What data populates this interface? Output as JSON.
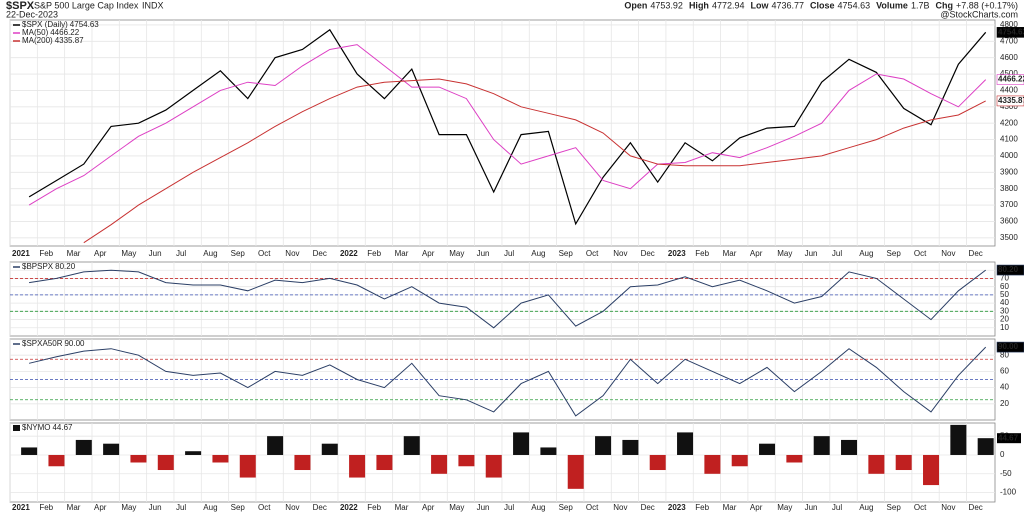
{
  "header": {
    "symbol": "$SPX",
    "name": "S&P 500 Large Cap Index",
    "exchange": "INDX",
    "date": "22-Dec-2023",
    "watermark": "@StockCharts.com",
    "quote": [
      {
        "label": "Open",
        "value": "4753.92"
      },
      {
        "label": "High",
        "value": "4772.94"
      },
      {
        "label": "Low",
        "value": "4736.77"
      },
      {
        "label": "Close",
        "value": "4754.63"
      },
      {
        "label": "Volume",
        "value": "1.7B"
      },
      {
        "label": "Chg",
        "value": "+7.88 (+0.17%)"
      }
    ]
  },
  "chart_data": [
    {
      "type": "line",
      "categories": [
        "2021",
        "Feb",
        "Mar",
        "Apr",
        "May",
        "Jun",
        "Jul",
        "Aug",
        "Sep",
        "Oct",
        "Nov",
        "Dec",
        "2022",
        "Feb",
        "Mar",
        "Apr",
        "May",
        "Jun",
        "Jul",
        "Aug",
        "Sep",
        "Oct",
        "Nov",
        "Dec",
        "2023",
        "Feb",
        "Mar",
        "Apr",
        "May",
        "Jun",
        "Jul",
        "Aug",
        "Sep",
        "Oct",
        "Nov",
        "Dec"
      ],
      "ylim": [
        3450,
        4830
      ],
      "yticks": [
        3500,
        3600,
        3700,
        3800,
        3900,
        4000,
        4100,
        4200,
        4300,
        4400,
        4500,
        4600,
        4700,
        4800
      ],
      "grid": true,
      "series": [
        {
          "name": "$SPX (Daily)",
          "color": "#000000",
          "values": [
            3750,
            3850,
            3950,
            4180,
            4200,
            4280,
            4400,
            4520,
            4350,
            4600,
            4650,
            4770,
            4500,
            4350,
            4530,
            4130,
            4130,
            3780,
            4130,
            4150,
            3585,
            3870,
            4080,
            3840,
            4080,
            3970,
            4110,
            4170,
            4180,
            4450,
            4590,
            4510,
            4290,
            4190,
            4560,
            4754.63
          ]
        },
        {
          "name": "MA(50)",
          "color": "#dd3fc4",
          "values": [
            3700,
            3800,
            3880,
            4000,
            4120,
            4200,
            4300,
            4400,
            4450,
            4430,
            4550,
            4650,
            4680,
            4550,
            4420,
            4420,
            4350,
            4100,
            3950,
            4000,
            4050,
            3850,
            3800,
            3950,
            3960,
            4020,
            3990,
            4050,
            4120,
            4200,
            4400,
            4500,
            4470,
            4380,
            4300,
            4466.22
          ]
        },
        {
          "name": "MA(200)",
          "color": "#c83232",
          "values": [
            null,
            null,
            3470,
            3580,
            3700,
            3800,
            3900,
            3990,
            4080,
            4180,
            4270,
            4350,
            4420,
            4450,
            4460,
            4470,
            4440,
            4380,
            4300,
            4260,
            4220,
            4140,
            4000,
            3950,
            3940,
            3940,
            3940,
            3960,
            3980,
            4000,
            4050,
            4100,
            4170,
            4220,
            4250,
            4335.87
          ]
        }
      ]
    },
    {
      "type": "line",
      "ylim": [
        0,
        90
      ],
      "yticks": [
        10,
        20,
        30,
        40,
        50,
        60,
        70,
        80
      ],
      "grid": true,
      "ref_lines": [
        {
          "value": 70,
          "color": "#c83232"
        },
        {
          "value": 50,
          "color": "#3a4fb0"
        },
        {
          "value": 30,
          "color": "#2a9a3a"
        }
      ],
      "series": [
        {
          "name": "$BPSPX",
          "color": "#2b3f66",
          "values": [
            65,
            70,
            78,
            80,
            78,
            65,
            62,
            62,
            55,
            68,
            65,
            70,
            62,
            45,
            60,
            40,
            35,
            10,
            40,
            50,
            12,
            30,
            60,
            62,
            72,
            60,
            68,
            55,
            40,
            48,
            78,
            70,
            45,
            20,
            55,
            80.2
          ],
          "value_labels": [
            null,
            null,
            null,
            null,
            null,
            null,
            null,
            null,
            null,
            null,
            null,
            null,
            null,
            null,
            null,
            null,
            null,
            null,
            null,
            null,
            null,
            null,
            null,
            null,
            null,
            null,
            null,
            null,
            null,
            null,
            null,
            null,
            null,
            null,
            null,
            "80.20"
          ]
        }
      ]
    },
    {
      "type": "line",
      "ylim": [
        0,
        100
      ],
      "yticks": [
        20,
        40,
        60,
        80
      ],
      "grid": true,
      "ref_lines": [
        {
          "value": 75,
          "color": "#c83232"
        },
        {
          "value": 50,
          "color": "#3a4fb0"
        },
        {
          "value": 25,
          "color": "#2a9a3a"
        }
      ],
      "series": [
        {
          "name": "$SPXA50R",
          "color": "#2b3f66",
          "values": [
            70,
            78,
            85,
            88,
            80,
            60,
            55,
            58,
            40,
            60,
            55,
            68,
            50,
            40,
            70,
            30,
            25,
            10,
            45,
            60,
            5,
            30,
            75,
            45,
            75,
            60,
            45,
            65,
            35,
            60,
            88,
            65,
            35,
            10,
            55,
            90
          ],
          "value_labels": [
            null,
            null,
            null,
            null,
            null,
            null,
            null,
            null,
            null,
            null,
            null,
            null,
            null,
            null,
            null,
            null,
            null,
            null,
            null,
            null,
            null,
            null,
            null,
            null,
            null,
            null,
            null,
            null,
            null,
            null,
            null,
            null,
            null,
            null,
            null,
            "90.00"
          ]
        }
      ]
    },
    {
      "type": "bar",
      "ylim": [
        -125,
        85
      ],
      "yticks": [
        -100,
        -50,
        0,
        50
      ],
      "grid": true,
      "categories": [
        "2021",
        "Feb",
        "Mar",
        "Apr",
        "May",
        "Jun",
        "Jul",
        "Aug",
        "Sep",
        "Oct",
        "Nov",
        "Dec",
        "2022",
        "Feb",
        "Mar",
        "Apr",
        "May",
        "Jun",
        "Jul",
        "Aug",
        "Sep",
        "Oct",
        "Nov",
        "Dec",
        "2023",
        "Feb",
        "Mar",
        "Apr",
        "May",
        "Jun",
        "Jul",
        "Aug",
        "Sep",
        "Oct",
        "Nov",
        "Dec"
      ],
      "colors": {
        "positive": "#111111",
        "negative": "#c02020"
      },
      "series": [
        {
          "name": "$NYMO",
          "values": [
            20,
            -30,
            40,
            30,
            -20,
            -40,
            10,
            -20,
            -60,
            50,
            -40,
            30,
            -60,
            -40,
            50,
            -50,
            -30,
            -60,
            60,
            20,
            -90,
            50,
            40,
            -40,
            60,
            -50,
            -30,
            30,
            -20,
            50,
            40,
            -50,
            -40,
            -80,
            80,
            44.67
          ]
        }
      ]
    }
  ]
}
